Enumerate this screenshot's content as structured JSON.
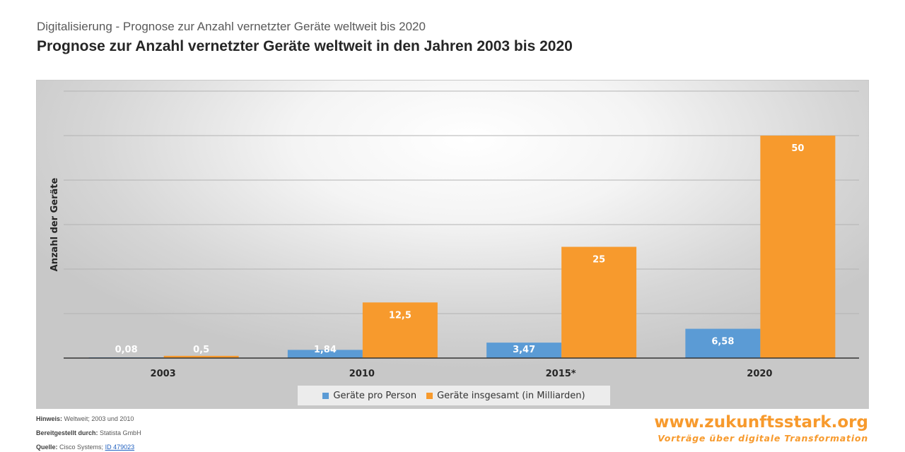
{
  "header": {
    "subtitle": "Digitalisierung - Prognose zur Anzahl vernetzter Geräte weltweit bis 2020",
    "title": "Prognose zur Anzahl vernetzter Geräte weltweit in den Jahren 2003 bis 2020"
  },
  "chart_data": {
    "type": "bar",
    "title": "Prognose zur Anzahl vernetzter Geräte weltweit in den Jahren 2003 bis 2020",
    "categories": [
      "2003",
      "2010",
      "2015*",
      "2020"
    ],
    "series": [
      {
        "name": "Geräte pro Person",
        "values": [
          0.08,
          1.84,
          3.47,
          6.58
        ],
        "labels": [
          "0,08",
          "1,84",
          "3,47",
          "6,58"
        ],
        "color": "#5b9bd5"
      },
      {
        "name": "Geräte insgesamt (in Milliarden)",
        "values": [
          0.5,
          12.5,
          25,
          50
        ],
        "labels": [
          "0,5",
          "12,5",
          "25",
          "50"
        ],
        "color": "#f79a2d"
      }
    ],
    "xlabel": "",
    "ylabel": "Anzahl der Geräte",
    "ylim": [
      0,
      60
    ],
    "ytick_step": 10,
    "grid": true,
    "legend": "bottom-center"
  },
  "footer": {
    "hint_label": "Hinweis:",
    "hint_value": "Weltweit; 2003 und 2010",
    "provided_label": "Bereitgestellt durch:",
    "provided_value": "Statista GmbH",
    "source_label": "Quelle:",
    "source_value": "Cisco Systems;",
    "source_id": "ID 479023"
  },
  "brand": {
    "url": "www.zukunftsstark.org",
    "tagline": "Vorträge über digitale Transformation"
  },
  "colors": {
    "series1": "#5b9bd5",
    "series2": "#f79a2d",
    "brand": "#f79a2d"
  }
}
